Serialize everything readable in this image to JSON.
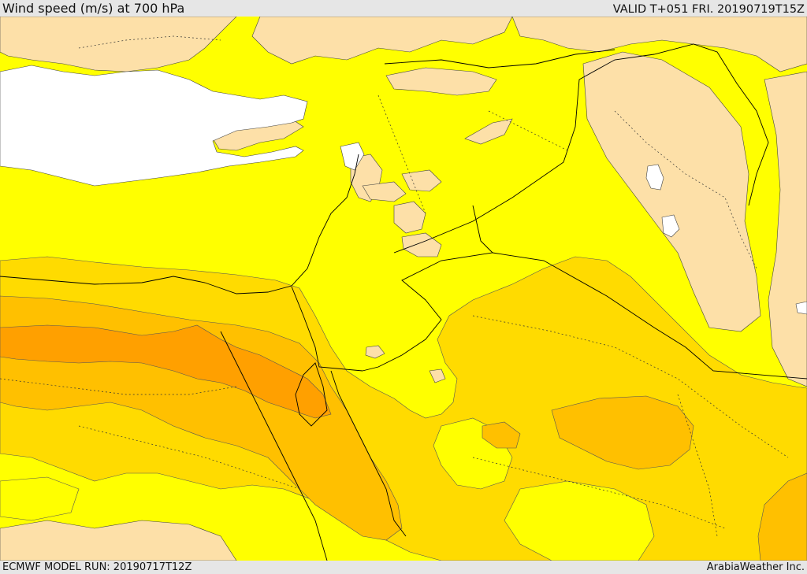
{
  "header": {
    "title": "Wind speed (m/s) at 700 hPa",
    "valid_label": "VALID T+051 FRI. 20190719T15Z"
  },
  "footer": {
    "model_run": "ECMWF MODEL RUN: 20190717T12Z",
    "credit": "ArabiaWeather Inc."
  },
  "map": {
    "field": "wind speed at 700 hPa",
    "palette": {
      "sea": "#ffffff",
      "calm_land": "#fde0a8",
      "band_1": "#ffff00",
      "band_2": "#ffdb00",
      "band_3": "#ffc000",
      "band_4": "#ffa000",
      "coastline": "#000000",
      "border": "#000000"
    }
  }
}
